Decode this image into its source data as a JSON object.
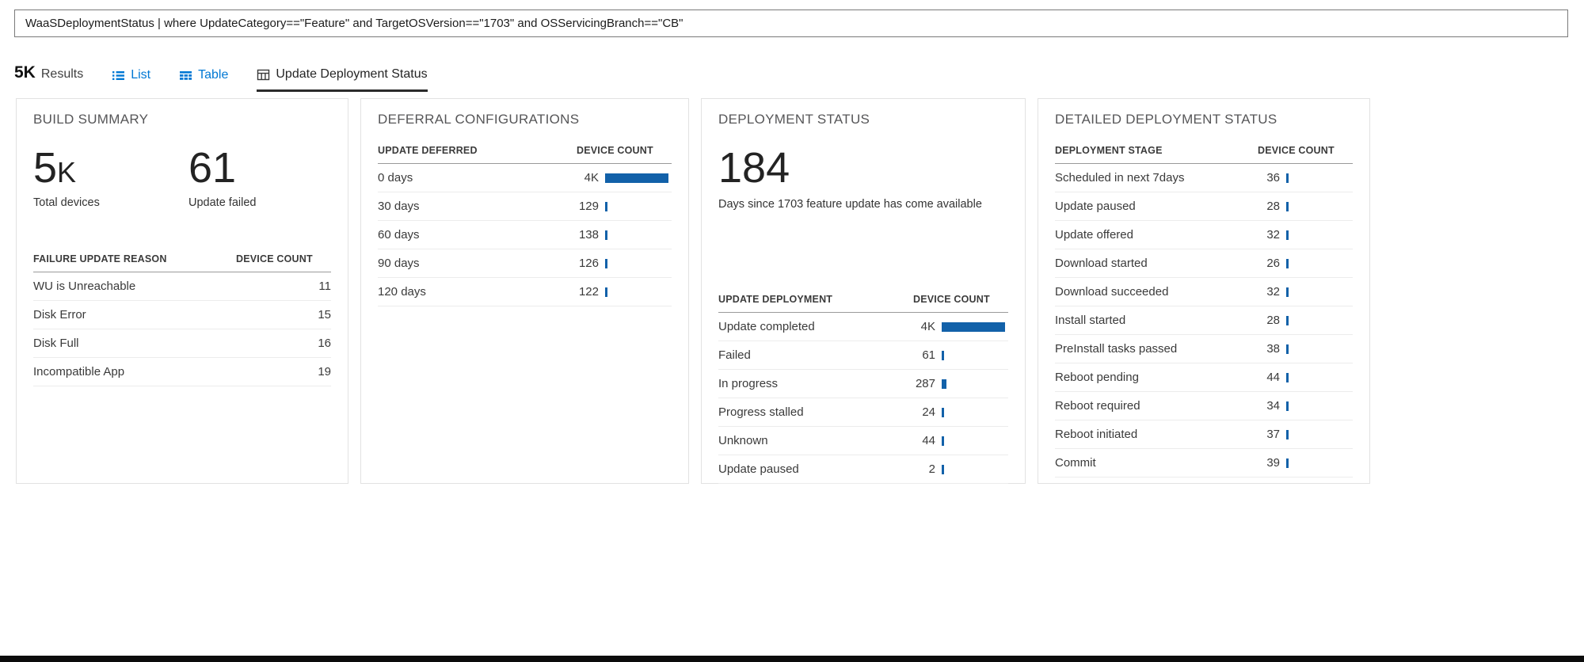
{
  "colors": {
    "accent": "#0078d4",
    "bar": "#1261a9",
    "tab_underline": "#2b2b2b"
  },
  "query": {
    "text": "WaaSDeploymentStatus | where UpdateCategory==\"Feature\" and TargetOSVersion==\"1703\" and OSServicingBranch==\"CB\""
  },
  "results_bar": {
    "count": "5K",
    "results_label": "Results",
    "list_label": "List",
    "table_label": "Table",
    "active_tab_label": "Update Deployment Status"
  },
  "panels": {
    "build_summary": {
      "title": "BUILD SUMMARY",
      "metrics": [
        {
          "value": "5",
          "suffix": "K",
          "label": "Total devices"
        },
        {
          "value": "61",
          "suffix": "",
          "label": "Update failed"
        }
      ],
      "table": {
        "col1": "FAILURE UPDATE REASON",
        "col2": "DEVICE COUNT",
        "rows": [
          {
            "label": "WU is Unreachable",
            "value": "11"
          },
          {
            "label": "Disk Error",
            "value": "15"
          },
          {
            "label": "Disk Full",
            "value": "16"
          },
          {
            "label": "Incompatible App",
            "value": "19"
          }
        ]
      }
    },
    "deferral": {
      "title": "DEFERRAL CONFIGURATIONS",
      "table": {
        "col1": "UPDATE DEFERRED",
        "col2": "DEVICE COUNT",
        "max": 4000,
        "rows": [
          {
            "label": "0 days",
            "value": "4K",
            "num": 4000
          },
          {
            "label": "30 days",
            "value": "129",
            "num": 129
          },
          {
            "label": "60 days",
            "value": "138",
            "num": 138
          },
          {
            "label": "90 days",
            "value": "126",
            "num": 126
          },
          {
            "label": "120 days",
            "value": "122",
            "num": 122
          }
        ]
      }
    },
    "deployment": {
      "title": "DEPLOYMENT STATUS",
      "metric": {
        "value": "184",
        "suffix": "",
        "label": "Days since 1703 feature update has come available"
      },
      "table": {
        "col1": "UPDATE DEPLOYMENT",
        "col2": "DEVICE COUNT",
        "max": 4000,
        "rows": [
          {
            "label": "Update completed",
            "value": "4K",
            "num": 4000
          },
          {
            "label": "Failed",
            "value": "61",
            "num": 61
          },
          {
            "label": "In progress",
            "value": "287",
            "num": 287
          },
          {
            "label": "Progress stalled",
            "value": "24",
            "num": 24
          },
          {
            "label": "Unknown",
            "value": "44",
            "num": 44
          },
          {
            "label": "Update paused",
            "value": "2",
            "num": 2
          }
        ]
      }
    },
    "detailed": {
      "title": "DETAILED DEPLOYMENT STATUS",
      "table": {
        "col1": "DEPLOYMENT STAGE",
        "col2": "DEVICE COUNT",
        "max": 4000,
        "rows": [
          {
            "label": "Scheduled in next 7days",
            "value": "36",
            "num": 36
          },
          {
            "label": "Update paused",
            "value": "28",
            "num": 28
          },
          {
            "label": "Update offered",
            "value": "32",
            "num": 32
          },
          {
            "label": "Download started",
            "value": "26",
            "num": 26
          },
          {
            "label": "Download succeeded",
            "value": "32",
            "num": 32
          },
          {
            "label": "Install started",
            "value": "28",
            "num": 28
          },
          {
            "label": "PreInstall tasks passed",
            "value": "38",
            "num": 38
          },
          {
            "label": "Reboot pending",
            "value": "44",
            "num": 44
          },
          {
            "label": "Reboot required",
            "value": "34",
            "num": 34
          },
          {
            "label": "Reboot initiated",
            "value": "37",
            "num": 37
          },
          {
            "label": "Commit",
            "value": "39",
            "num": 39
          }
        ]
      }
    }
  }
}
